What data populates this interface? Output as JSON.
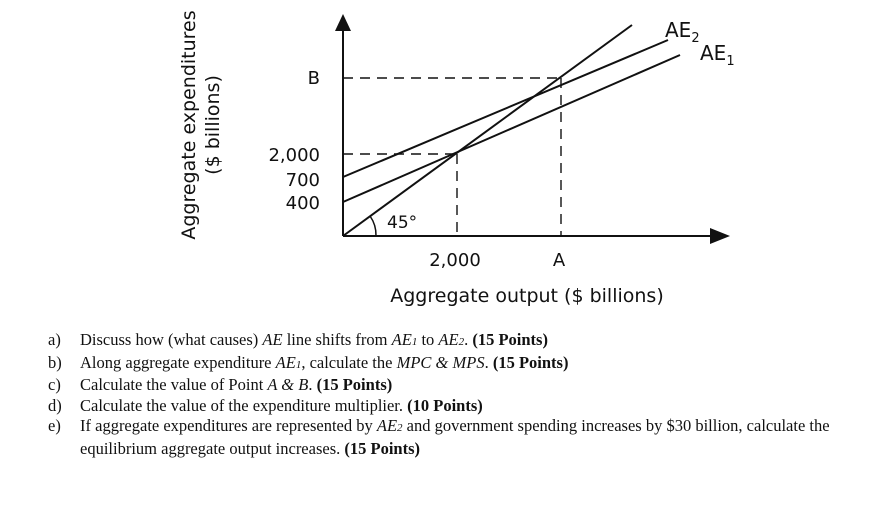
{
  "diagram": {
    "y_axis_label_line1": "Aggregate expenditures",
    "y_axis_label_line2": "($ billions)",
    "x_axis_label": "Aggregate output ($ billions)",
    "y_ticks": [
      "B",
      "2,000",
      "700",
      "400"
    ],
    "x_ticks": [
      "2,000",
      "A"
    ],
    "angle_label": "45°",
    "line_labels": {
      "ae2_main": "AE",
      "ae2_sub": "2",
      "ae1_main": "AE",
      "ae1_sub": "1"
    },
    "lines": [
      {
        "name": "AE1",
        "intercept": 400,
        "passes_through": [
          2000,
          2000
        ]
      },
      {
        "name": "AE2",
        "intercept": 700
      },
      {
        "name": "45-degree line",
        "slope": 1
      }
    ]
  },
  "questions": [
    {
      "letter": "a)",
      "parts": [
        [
          "Discuss how (what causes) ",
          ""
        ],
        [
          "AE",
          "i"
        ],
        [
          " line shifts from ",
          ""
        ],
        [
          "AE",
          "i"
        ],
        [
          "1",
          "si"
        ],
        [
          " to ",
          ""
        ],
        [
          "AE",
          "i"
        ],
        [
          "2",
          "si"
        ],
        [
          ". ",
          ""
        ],
        [
          "(15 Points)",
          "b"
        ]
      ]
    },
    {
      "letter": "b)",
      "parts": [
        [
          "Along aggregate expenditure ",
          ""
        ],
        [
          "AE",
          "i"
        ],
        [
          "1",
          "si"
        ],
        [
          ", calculate the ",
          ""
        ],
        [
          "MPC & MPS",
          "i"
        ],
        [
          ". ",
          ""
        ],
        [
          "(15 Points)",
          "b"
        ]
      ]
    },
    {
      "letter": "c)",
      "parts": [
        [
          "Calculate the value of Point ",
          ""
        ],
        [
          "A & B",
          "i"
        ],
        [
          ". ",
          ""
        ],
        [
          "(15 Points)",
          "b"
        ]
      ]
    },
    {
      "letter": "d)",
      "parts": [
        [
          "Calculate the value of the expenditure multiplier. ",
          ""
        ],
        [
          "(10 Points)",
          "b"
        ]
      ]
    },
    {
      "letter": "e)",
      "parts": [
        [
          "If aggregate expenditures are represented by ",
          ""
        ],
        [
          "AE",
          "i"
        ],
        [
          "2",
          "si"
        ],
        [
          " and government spending increases by $30 billion, calculate the equilibrium aggregate output increases. ",
          ""
        ],
        [
          "(15 Points)",
          "b"
        ]
      ]
    }
  ]
}
